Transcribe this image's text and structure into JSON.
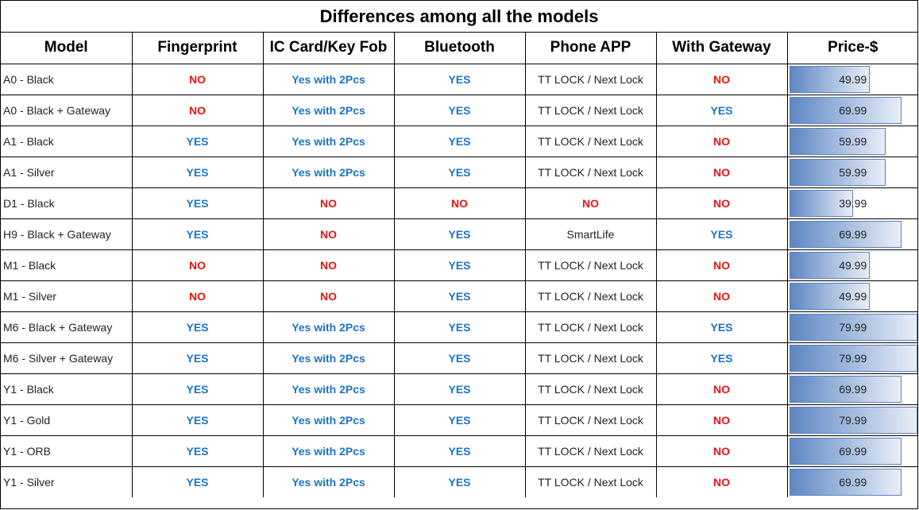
{
  "title": "Differences among all the models",
  "headers": [
    "Model",
    "Fingerprint",
    "IC Card/Key Fob",
    "Bluetooth",
    "Phone APP",
    "With Gateway",
    "Price-$"
  ],
  "price_bar_max": 79.99,
  "colors": {
    "yes": "#1b74c4",
    "no": "#ee1111",
    "bar_start": "#5d86c3",
    "bar_end": "#e8eef7"
  },
  "rows": [
    {
      "model": "A0 - Black",
      "fingerprint": "NO",
      "ic_card": "Yes with 2Pcs",
      "bluetooth": "YES",
      "phone_app": "TT LOCK / Next Lock",
      "gateway": "NO",
      "price": 49.99,
      "price_text": "49.99"
    },
    {
      "model": "A0 - Black + Gateway",
      "fingerprint": "NO",
      "ic_card": "Yes with 2Pcs",
      "bluetooth": "YES",
      "phone_app": "TT LOCK / Next Lock",
      "gateway": "YES",
      "price": 69.99,
      "price_text": "69.99"
    },
    {
      "model": "A1 - Black",
      "fingerprint": "YES",
      "ic_card": "Yes with 2Pcs",
      "bluetooth": "YES",
      "phone_app": "TT LOCK / Next Lock",
      "gateway": "NO",
      "price": 59.99,
      "price_text": "59.99"
    },
    {
      "model": "A1 - Silver",
      "fingerprint": "YES",
      "ic_card": "Yes with 2Pcs",
      "bluetooth": "YES",
      "phone_app": "TT LOCK / Next Lock",
      "gateway": "NO",
      "price": 59.99,
      "price_text": "59.99"
    },
    {
      "model": "D1 - Black",
      "fingerprint": "YES",
      "ic_card": "NO",
      "bluetooth": "NO",
      "phone_app": "NO",
      "gateway": "NO",
      "price": 39.99,
      "price_text": "39.99"
    },
    {
      "model": "H9 - Black + Gateway",
      "fingerprint": "YES",
      "ic_card": "NO",
      "bluetooth": "YES",
      "phone_app": "SmartLife",
      "gateway": "YES",
      "price": 69.99,
      "price_text": "69.99"
    },
    {
      "model": "M1 - Black",
      "fingerprint": "NO",
      "ic_card": "NO",
      "bluetooth": "YES",
      "phone_app": "TT LOCK / Next Lock",
      "gateway": "NO",
      "price": 49.99,
      "price_text": "49.99"
    },
    {
      "model": "M1 - Silver",
      "fingerprint": "NO",
      "ic_card": "NO",
      "bluetooth": "YES",
      "phone_app": "TT LOCK / Next Lock",
      "gateway": "NO",
      "price": 49.99,
      "price_text": "49.99"
    },
    {
      "model": "M6 - Black + Gateway",
      "fingerprint": "YES",
      "ic_card": "Yes with 2Pcs",
      "bluetooth": "YES",
      "phone_app": "TT LOCK / Next Lock",
      "gateway": "YES",
      "price": 79.99,
      "price_text": "79.99"
    },
    {
      "model": "M6 - Silver + Gateway",
      "fingerprint": "YES",
      "ic_card": "Yes with 2Pcs",
      "bluetooth": "YES",
      "phone_app": "TT LOCK / Next Lock",
      "gateway": "YES",
      "price": 79.99,
      "price_text": "79.99"
    },
    {
      "model": "Y1 - Black",
      "fingerprint": "YES",
      "ic_card": "Yes with 2Pcs",
      "bluetooth": "YES",
      "phone_app": "TT LOCK / Next Lock",
      "gateway": "NO",
      "price": 69.99,
      "price_text": "69.99"
    },
    {
      "model": "Y1 - Gold",
      "fingerprint": "YES",
      "ic_card": "Yes with 2Pcs",
      "bluetooth": "YES",
      "phone_app": "TT LOCK / Next Lock",
      "gateway": "NO",
      "price": 79.99,
      "price_text": "79.99"
    },
    {
      "model": "Y1 - ORB",
      "fingerprint": "YES",
      "ic_card": "Yes with 2Pcs",
      "bluetooth": "YES",
      "phone_app": "TT LOCK / Next Lock",
      "gateway": "NO",
      "price": 69.99,
      "price_text": "69.99"
    },
    {
      "model": "Y1 - Silver",
      "fingerprint": "YES",
      "ic_card": "Yes with 2Pcs",
      "bluetooth": "YES",
      "phone_app": "TT LOCK / Next Lock",
      "gateway": "NO",
      "price": 69.99,
      "price_text": "69.99"
    }
  ]
}
